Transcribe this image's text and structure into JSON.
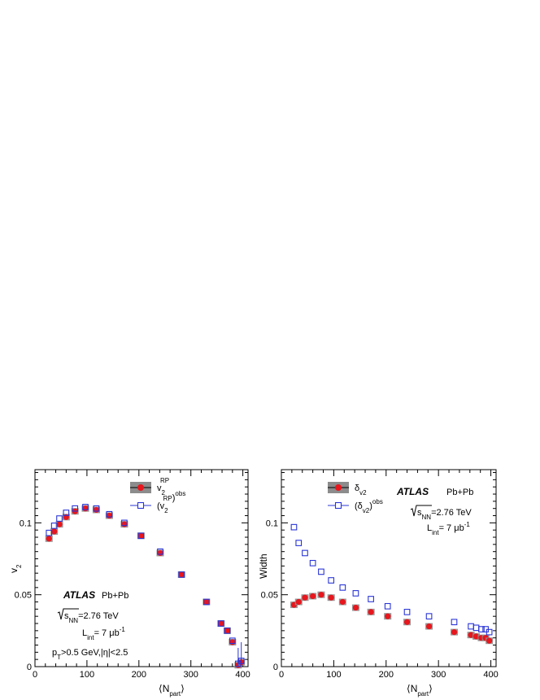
{
  "colors": {
    "filled": "#e8161d",
    "open": "#2a35d6",
    "band": "#8c8c8c",
    "axis": "#000000"
  },
  "panels": [
    {
      "id": "left",
      "ylabel": "v",
      "ylabel_sub": "2",
      "legend": [
        {
          "base": "v",
          "sub": "2",
          "sup": "RP",
          "style": "filled"
        },
        {
          "base": "(v",
          "sub": "2",
          "sup": "RP",
          "post": ")",
          "post_sup": "obs",
          "style": "open"
        }
      ],
      "annotations": {
        "atlas": "ATLAS",
        "system": "Pb+Pb",
        "energy": "=2.76 TeV",
        "energy_sqrt": "s",
        "energy_sub": "NN",
        "lumi": "= 7 μb",
        "lumi_L": "L",
        "lumi_sub": "int",
        "lumi_sup": "-1",
        "cuts_p": "p",
        "cuts_sub": "T",
        "cuts_rest": ">0.5 GeV,|η|<2.5"
      }
    },
    {
      "id": "right",
      "ylabel": "Width",
      "legend": [
        {
          "base": "δ",
          "sub": "v",
          "subsub": "2",
          "style": "filled"
        },
        {
          "base": "(δ",
          "sub": "v",
          "subsub": "2",
          "post": ")",
          "post_sup": "obs",
          "style": "open"
        }
      ],
      "annotations": {
        "atlas": "ATLAS",
        "system": "Pb+Pb",
        "energy": "=2.76 TeV",
        "energy_sqrt": "s",
        "energy_sub": "NN",
        "lumi": "= 7 μb",
        "lumi_L": "L",
        "lumi_sub": "int",
        "lumi_sup": "-1"
      }
    }
  ],
  "xlabel": "N",
  "xlabel_sub": "part",
  "chart_data": [
    {
      "type": "scatter",
      "xlabel": "⟨N_part⟩",
      "ylabel": "v_2",
      "xlim": [
        0,
        410
      ],
      "ylim": [
        0,
        0.137
      ],
      "x_ticks": [
        0,
        100,
        200,
        300,
        400
      ],
      "y_ticks": [
        0,
        0.05,
        0.1
      ],
      "y_tick_labels": [
        "0",
        "0.05",
        "0.1"
      ],
      "series": [
        {
          "name": "v2^RP",
          "style": "filled",
          "x": [
            27,
            37,
            47,
            60,
            77,
            97,
            118,
            143,
            172,
            204,
            241,
            282,
            330,
            358,
            370,
            380,
            391,
            397
          ],
          "y": [
            0.089,
            0.094,
            0.099,
            0.104,
            0.108,
            0.11,
            0.109,
            0.105,
            0.099,
            0.091,
            0.079,
            0.064,
            0.045,
            0.03,
            0.025,
            0.017,
            0.001,
            0.003
          ]
        },
        {
          "name": "(v2^RP)^obs",
          "style": "open",
          "x": [
            27,
            37,
            47,
            60,
            77,
            97,
            118,
            143,
            172,
            204,
            241,
            282,
            330,
            358,
            370,
            380,
            391,
            397
          ],
          "y": [
            0.093,
            0.098,
            0.103,
            0.107,
            0.11,
            0.111,
            0.11,
            0.106,
            0.1,
            0.091,
            0.08,
            0.064,
            0.045,
            0.03,
            0.025,
            0.018,
            0.002,
            0.004
          ]
        }
      ]
    },
    {
      "type": "scatter",
      "xlabel": "⟨N_part⟩",
      "ylabel": "Width",
      "xlim": [
        0,
        410
      ],
      "ylim": [
        0,
        0.137
      ],
      "x_ticks": [
        0,
        100,
        200,
        300,
        400
      ],
      "y_ticks": [
        0,
        0.05,
        0.1
      ],
      "y_tick_labels": [
        "0",
        "0.05",
        "0.1"
      ],
      "series": [
        {
          "name": "δv2",
          "style": "filled",
          "x": [
            24,
            33,
            45,
            60,
            76,
            95,
            117,
            142,
            171,
            203,
            240,
            282,
            330,
            362,
            372,
            382,
            390,
            397
          ],
          "y": [
            0.043,
            0.045,
            0.048,
            0.049,
            0.05,
            0.048,
            0.045,
            0.041,
            0.038,
            0.035,
            0.031,
            0.028,
            0.024,
            0.022,
            0.021,
            0.02,
            0.02,
            0.018
          ]
        },
        {
          "name": "(δv2)^obs",
          "style": "open",
          "x": [
            24,
            33,
            45,
            60,
            76,
            95,
            117,
            142,
            171,
            203,
            240,
            282,
            330,
            362,
            372,
            382,
            390,
            397
          ],
          "y": [
            0.097,
            0.086,
            0.079,
            0.072,
            0.066,
            0.06,
            0.055,
            0.051,
            0.047,
            0.042,
            0.038,
            0.035,
            0.031,
            0.028,
            0.027,
            0.026,
            0.026,
            0.024
          ]
        }
      ]
    }
  ]
}
